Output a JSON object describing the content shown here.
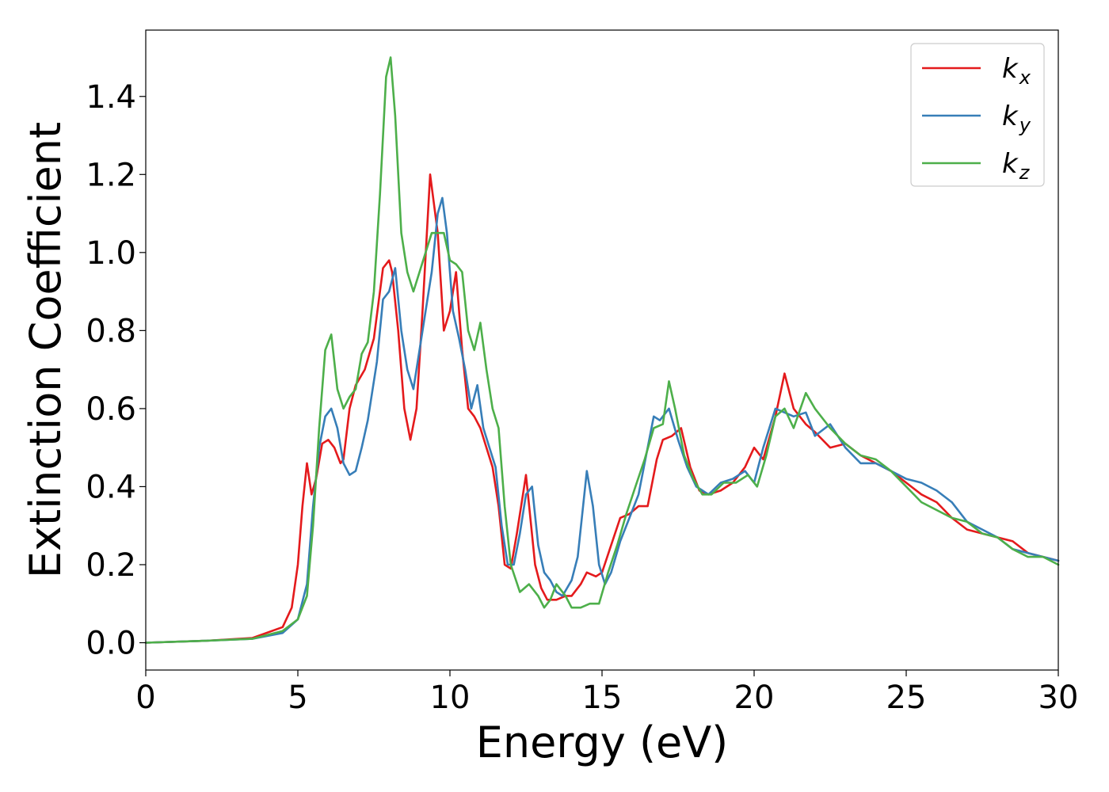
{
  "chart_data": {
    "type": "line",
    "title": "",
    "xlabel": "Energy (eV)",
    "ylabel": "Extinction Coefficient",
    "xlim": [
      0,
      30
    ],
    "ylim": [
      -0.07,
      1.57
    ],
    "xticks": [
      0,
      5,
      10,
      15,
      20,
      25,
      30
    ],
    "xtick_labels": [
      "0",
      "5",
      "10",
      "15",
      "20",
      "25",
      "30"
    ],
    "yticks": [
      0.0,
      0.2,
      0.4,
      0.6,
      0.8,
      1.0,
      1.2,
      1.4
    ],
    "ytick_labels": [
      "0.0",
      "0.2",
      "0.4",
      "0.6",
      "0.8",
      "1.0",
      "1.2",
      "1.4"
    ],
    "grid": false,
    "legend_position": "top-right",
    "series": [
      {
        "name": "k",
        "subscript": "x",
        "color": "#e41a1c",
        "x": [
          0,
          2,
          3.5,
          4.5,
          4.8,
          5.0,
          5.15,
          5.3,
          5.45,
          5.6,
          5.8,
          6.0,
          6.2,
          6.4,
          6.5,
          6.7,
          6.9,
          7.2,
          7.5,
          7.8,
          8.0,
          8.1,
          8.3,
          8.5,
          8.7,
          8.9,
          9.1,
          9.35,
          9.6,
          9.8,
          10.0,
          10.2,
          10.4,
          10.6,
          10.8,
          11.0,
          11.2,
          11.4,
          11.6,
          11.8,
          12.0,
          12.2,
          12.5,
          12.8,
          13.0,
          13.2,
          13.5,
          13.8,
          14.0,
          14.3,
          14.5,
          14.8,
          15.0,
          15.3,
          15.6,
          15.9,
          16.2,
          16.5,
          16.8,
          17.0,
          17.3,
          17.6,
          17.9,
          18.2,
          18.5,
          18.9,
          19.3,
          19.7,
          20.0,
          20.3,
          20.7,
          21.0,
          21.3,
          21.7,
          22.0,
          22.5,
          23.0,
          23.5,
          24.0,
          24.5,
          25.0,
          25.5,
          26.0,
          26.5,
          27.0,
          27.5,
          28.0,
          28.5,
          29.0,
          29.5,
          30.0
        ],
        "y": [
          0.0,
          0.005,
          0.012,
          0.04,
          0.09,
          0.2,
          0.35,
          0.46,
          0.38,
          0.42,
          0.51,
          0.52,
          0.5,
          0.46,
          0.47,
          0.6,
          0.66,
          0.7,
          0.78,
          0.96,
          0.98,
          0.95,
          0.8,
          0.6,
          0.52,
          0.6,
          0.85,
          1.2,
          1.05,
          0.8,
          0.85,
          0.95,
          0.75,
          0.6,
          0.58,
          0.55,
          0.5,
          0.45,
          0.35,
          0.2,
          0.19,
          0.28,
          0.43,
          0.2,
          0.14,
          0.11,
          0.11,
          0.12,
          0.12,
          0.15,
          0.18,
          0.17,
          0.18,
          0.25,
          0.32,
          0.33,
          0.35,
          0.35,
          0.47,
          0.52,
          0.53,
          0.55,
          0.45,
          0.39,
          0.38,
          0.39,
          0.41,
          0.45,
          0.5,
          0.47,
          0.58,
          0.69,
          0.6,
          0.56,
          0.54,
          0.5,
          0.51,
          0.48,
          0.46,
          0.44,
          0.41,
          0.38,
          0.36,
          0.32,
          0.29,
          0.28,
          0.27,
          0.26,
          0.23,
          0.22,
          0.21
        ]
      },
      {
        "name": "k",
        "subscript": "y",
        "color": "#377eb8",
        "x": [
          0,
          2,
          3.5,
          4.5,
          5.0,
          5.3,
          5.5,
          5.7,
          5.9,
          6.1,
          6.3,
          6.5,
          6.7,
          6.9,
          7.1,
          7.3,
          7.6,
          7.8,
          8.0,
          8.2,
          8.4,
          8.6,
          8.8,
          9.0,
          9.2,
          9.4,
          9.6,
          9.75,
          9.9,
          10.1,
          10.3,
          10.5,
          10.7,
          10.9,
          11.1,
          11.3,
          11.5,
          11.7,
          11.9,
          12.1,
          12.3,
          12.5,
          12.7,
          12.9,
          13.1,
          13.3,
          13.5,
          13.7,
          14.0,
          14.2,
          14.5,
          14.7,
          14.9,
          15.1,
          15.3,
          15.6,
          15.9,
          16.2,
          16.5,
          16.7,
          16.9,
          17.2,
          17.5,
          17.8,
          18.1,
          18.5,
          18.9,
          19.3,
          19.7,
          20.0,
          20.3,
          20.7,
          21.0,
          21.3,
          21.7,
          22.0,
          22.5,
          23.0,
          23.5,
          24.0,
          24.5,
          25.0,
          25.5,
          26.0,
          26.5,
          27.0,
          27.5,
          28.0,
          28.5,
          29.0,
          29.5,
          30.0
        ],
        "y": [
          0.0,
          0.005,
          0.01,
          0.025,
          0.06,
          0.15,
          0.35,
          0.5,
          0.58,
          0.6,
          0.55,
          0.46,
          0.43,
          0.44,
          0.5,
          0.57,
          0.72,
          0.88,
          0.9,
          0.96,
          0.8,
          0.7,
          0.65,
          0.75,
          0.85,
          0.95,
          1.1,
          1.14,
          1.05,
          0.85,
          0.78,
          0.7,
          0.6,
          0.66,
          0.55,
          0.5,
          0.45,
          0.3,
          0.2,
          0.2,
          0.28,
          0.38,
          0.4,
          0.25,
          0.18,
          0.16,
          0.13,
          0.12,
          0.16,
          0.22,
          0.44,
          0.35,
          0.2,
          0.15,
          0.18,
          0.26,
          0.32,
          0.38,
          0.5,
          0.58,
          0.57,
          0.6,
          0.52,
          0.45,
          0.4,
          0.38,
          0.41,
          0.42,
          0.44,
          0.41,
          0.5,
          0.6,
          0.59,
          0.58,
          0.59,
          0.53,
          0.56,
          0.5,
          0.46,
          0.46,
          0.44,
          0.42,
          0.41,
          0.39,
          0.36,
          0.31,
          0.29,
          0.27,
          0.24,
          0.23,
          0.22,
          0.21
        ]
      },
      {
        "name": "k",
        "subscript": "z",
        "color": "#4daf4a",
        "x": [
          0,
          2,
          3.5,
          4.5,
          5.0,
          5.3,
          5.5,
          5.7,
          5.9,
          6.1,
          6.3,
          6.5,
          6.7,
          6.9,
          7.1,
          7.3,
          7.5,
          7.7,
          7.9,
          8.05,
          8.2,
          8.4,
          8.6,
          8.8,
          9.0,
          9.2,
          9.4,
          9.6,
          9.8,
          10.0,
          10.2,
          10.4,
          10.6,
          10.8,
          11.0,
          11.2,
          11.4,
          11.6,
          11.8,
          12.0,
          12.3,
          12.6,
          12.9,
          13.1,
          13.3,
          13.5,
          13.8,
          14.0,
          14.3,
          14.6,
          14.9,
          15.2,
          15.5,
          15.8,
          16.1,
          16.4,
          16.7,
          17.0,
          17.2,
          17.4,
          17.7,
          18.0,
          18.3,
          18.6,
          19.0,
          19.4,
          19.8,
          20.1,
          20.4,
          20.7,
          21.0,
          21.3,
          21.7,
          22.0,
          22.5,
          23.0,
          23.5,
          24.0,
          24.5,
          25.0,
          25.5,
          26.0,
          26.5,
          27.0,
          27.5,
          28.0,
          28.5,
          29.0,
          29.5,
          30.0
        ],
        "y": [
          0.0,
          0.005,
          0.01,
          0.03,
          0.06,
          0.12,
          0.3,
          0.55,
          0.75,
          0.79,
          0.65,
          0.6,
          0.63,
          0.65,
          0.74,
          0.77,
          0.9,
          1.15,
          1.45,
          1.5,
          1.35,
          1.05,
          0.95,
          0.9,
          0.95,
          1.0,
          1.05,
          1.05,
          1.05,
          0.98,
          0.97,
          0.95,
          0.8,
          0.75,
          0.82,
          0.7,
          0.6,
          0.55,
          0.35,
          0.2,
          0.13,
          0.15,
          0.12,
          0.09,
          0.11,
          0.15,
          0.12,
          0.09,
          0.09,
          0.1,
          0.1,
          0.18,
          0.25,
          0.33,
          0.4,
          0.47,
          0.55,
          0.56,
          0.67,
          0.6,
          0.48,
          0.42,
          0.38,
          0.38,
          0.41,
          0.41,
          0.43,
          0.4,
          0.48,
          0.58,
          0.6,
          0.55,
          0.64,
          0.6,
          0.55,
          0.51,
          0.48,
          0.47,
          0.44,
          0.4,
          0.36,
          0.34,
          0.32,
          0.31,
          0.28,
          0.27,
          0.24,
          0.22,
          0.22,
          0.2
        ]
      }
    ]
  }
}
